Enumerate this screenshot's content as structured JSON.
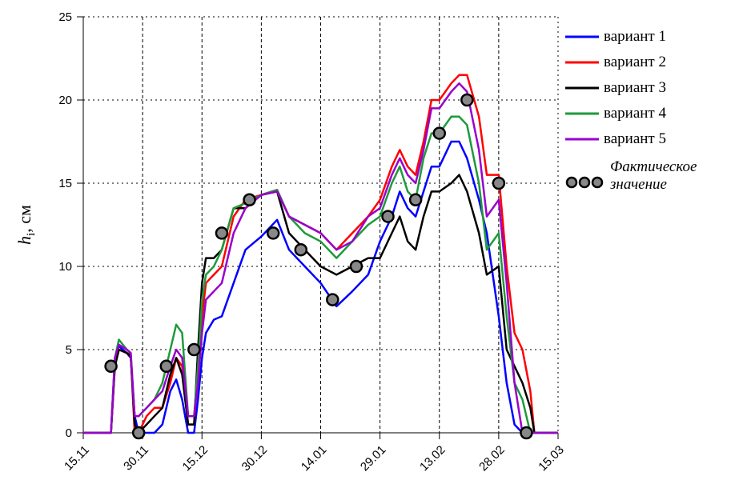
{
  "chart_data": {
    "type": "line",
    "y_label": {
      "symbol": "h",
      "subscript": "i",
      "text": ", см"
    },
    "x": [
      0,
      7,
      8,
      9,
      11,
      12,
      13,
      14,
      16,
      18,
      20,
      22,
      23.5,
      25,
      26.5,
      28,
      29,
      30,
      31,
      33,
      35,
      38,
      41,
      45,
      49,
      52,
      56,
      60,
      64,
      68,
      72,
      75,
      78,
      80,
      82,
      84,
      86,
      88,
      90,
      93,
      95,
      97,
      100,
      102,
      105,
      107,
      109,
      111,
      113,
      114,
      120
    ],
    "xlim": [
      0,
      120
    ],
    "xticks": [
      {
        "value": 0,
        "label": "15.11"
      },
      {
        "value": 15,
        "label": "30.11"
      },
      {
        "value": 30,
        "label": "15.12"
      },
      {
        "value": 45,
        "label": "30.12"
      },
      {
        "value": 60,
        "label": "14.01"
      },
      {
        "value": 75,
        "label": "29.01"
      },
      {
        "value": 90,
        "label": "13.02"
      },
      {
        "value": 105,
        "label": "28.02"
      },
      {
        "value": 120,
        "label": "15.03"
      }
    ],
    "ylim": [
      0,
      25
    ],
    "yticks": [
      0,
      5,
      10,
      15,
      20,
      25
    ],
    "grid": true,
    "legend": "right",
    "series": [
      {
        "name": "вариант 1",
        "color": "#0000ff",
        "values": [
          0,
          0,
          4.5,
          5.2,
          4.8,
          4.5,
          1,
          0,
          0,
          0,
          0.5,
          2.5,
          3.2,
          2,
          0,
          0,
          2,
          4.5,
          6,
          6.8,
          7,
          9,
          11,
          11.8,
          12.8,
          11,
          10,
          9,
          7.6,
          8.5,
          9.5,
          11.5,
          13,
          14.5,
          13.5,
          13,
          14.5,
          16,
          16,
          17.5,
          17.5,
          16.5,
          14,
          12,
          7,
          3,
          0.5,
          0,
          0,
          0,
          0
        ]
      },
      {
        "name": "вариант 2",
        "color": "#ff0000",
        "values": [
          0,
          0,
          4,
          5,
          4.8,
          4.7,
          0,
          0,
          1,
          1.5,
          1.5,
          3,
          4.5,
          4,
          0.5,
          0.5,
          4,
          7,
          9,
          9.5,
          10,
          13,
          14,
          14.3,
          14.6,
          13,
          12.5,
          12,
          11,
          12,
          13,
          14,
          16,
          17,
          16,
          15.5,
          17.5,
          20,
          20,
          21,
          21.5,
          21.5,
          19,
          15.5,
          15.5,
          10,
          6,
          5,
          2.5,
          0,
          0
        ]
      },
      {
        "name": "вариант 3",
        "color": "#000000",
        "values": [
          0,
          0,
          4,
          5,
          4.8,
          4.6,
          0.5,
          0,
          0.5,
          1,
          1.5,
          3.5,
          4.5,
          3.5,
          0.5,
          0.5,
          5,
          9,
          10.5,
          10.5,
          11,
          13.5,
          13.5,
          14.3,
          14.5,
          12,
          11,
          10,
          9.5,
          10,
          10.5,
          10.5,
          12,
          13,
          11.5,
          11,
          13,
          14.5,
          14.5,
          15,
          15.5,
          14.5,
          12,
          9.5,
          10,
          5,
          4,
          3,
          1.5,
          0,
          0
        ]
      },
      {
        "name": "вариант 4",
        "color": "#1f9a3a",
        "values": [
          0,
          0,
          4.5,
          5.6,
          5,
          4.8,
          1,
          1,
          1.5,
          2,
          3,
          5,
          6.5,
          6,
          1,
          1,
          4,
          8,
          9.5,
          10,
          11,
          13.5,
          13.8,
          14.3,
          14.6,
          13,
          12,
          11.5,
          10.5,
          11.5,
          12.5,
          13,
          15,
          16,
          14.5,
          14,
          16.5,
          18,
          18,
          19,
          19,
          18.5,
          15,
          11,
          12,
          7,
          3,
          2,
          0,
          0,
          0
        ]
      },
      {
        "name": "вариант 5",
        "color": "#9900cc",
        "values": [
          0,
          0,
          4.5,
          5.3,
          5,
          4.8,
          1,
          1,
          1.5,
          2,
          2.5,
          4,
          5,
          4.5,
          1,
          1,
          3,
          6,
          8,
          8.5,
          9,
          12,
          13.5,
          14.3,
          14.5,
          13,
          12.5,
          12,
          11,
          11.5,
          13,
          13.5,
          15.5,
          16.5,
          15.5,
          15,
          17,
          19.5,
          19.5,
          20.5,
          21,
          20.5,
          17,
          13,
          14,
          9,
          3,
          0,
          0,
          0,
          0
        ]
      },
      {
        "name": "Фактическое значение",
        "type": "scatter",
        "color": "#888888",
        "x": [
          7,
          14,
          21,
          28,
          35,
          42,
          48,
          55,
          63,
          69,
          77,
          84,
          90,
          97,
          105,
          112
        ],
        "values": [
          4,
          0,
          4,
          5,
          12,
          14,
          12,
          11,
          8,
          10,
          13,
          14,
          18,
          20,
          15,
          0
        ]
      }
    ]
  }
}
